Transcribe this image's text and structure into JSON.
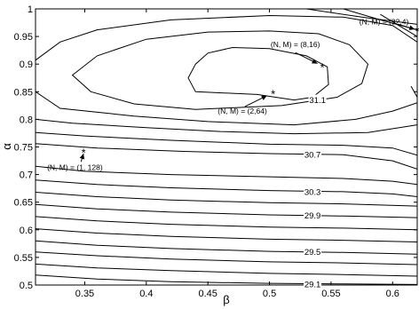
{
  "chart_data": {
    "type": "contour",
    "title": "",
    "xlabel": "β",
    "ylabel": "α",
    "xlim": [
      0.31,
      0.62
    ],
    "ylim": [
      0.5,
      1.0
    ],
    "grid": false,
    "x_ticks": [
      {
        "value": 0.35,
        "label": "0.35"
      },
      {
        "value": 0.4,
        "label": "0.4"
      },
      {
        "value": 0.45,
        "label": "0.45"
      },
      {
        "value": 0.5,
        "label": "0.5"
      },
      {
        "value": 0.55,
        "label": "0.55"
      },
      {
        "value": 0.6,
        "label": "0.6"
      }
    ],
    "y_ticks": [
      {
        "value": 0.5,
        "label": "0.5"
      },
      {
        "value": 0.55,
        "label": "0.55"
      },
      {
        "value": 0.6,
        "label": "0.6"
      },
      {
        "value": 0.65,
        "label": "0.65"
      },
      {
        "value": 0.7,
        "label": "0.7"
      },
      {
        "value": 0.75,
        "label": "0.75"
      },
      {
        "value": 0.8,
        "label": "0.8"
      },
      {
        "value": 0.85,
        "label": "0.85"
      },
      {
        "value": 0.9,
        "label": "0.9"
      },
      {
        "value": 0.95,
        "label": "0.95"
      },
      {
        "value": 1.0,
        "label": "1"
      }
    ],
    "contours": [
      {
        "label": "",
        "closed": true,
        "points": [
          [
            0.44,
            0.85
          ],
          [
            0.49,
            0.845
          ],
          [
            0.52,
            0.835
          ],
          [
            0.535,
            0.84
          ],
          [
            0.548,
            0.863
          ],
          [
            0.547,
            0.895
          ],
          [
            0.53,
            0.915
          ],
          [
            0.5,
            0.928
          ],
          [
            0.47,
            0.93
          ],
          [
            0.45,
            0.92
          ],
          [
            0.44,
            0.9
          ],
          [
            0.434,
            0.875
          ],
          [
            0.44,
            0.85
          ]
        ]
      },
      {
        "label": "",
        "closed": true,
        "points": [
          [
            0.34,
            0.88
          ],
          [
            0.36,
            0.915
          ],
          [
            0.4,
            0.945
          ],
          [
            0.45,
            0.958
          ],
          [
            0.5,
            0.96
          ],
          [
            0.54,
            0.955
          ],
          [
            0.565,
            0.935
          ],
          [
            0.58,
            0.9
          ],
          [
            0.575,
            0.865
          ],
          [
            0.555,
            0.84
          ],
          [
            0.51,
            0.825
          ],
          [
            0.44,
            0.818
          ],
          [
            0.39,
            0.828
          ],
          [
            0.355,
            0.85
          ],
          [
            0.34,
            0.88
          ]
        ]
      },
      {
        "label": "",
        "closed": false,
        "points": [
          [
            0.31,
            0.907
          ],
          [
            0.33,
            0.94
          ],
          [
            0.36,
            0.962
          ],
          [
            0.42,
            0.98
          ],
          [
            0.5,
            0.988
          ],
          [
            0.56,
            0.985
          ],
          [
            0.6,
            0.97
          ],
          [
            0.62,
            0.94
          ]
        ]
      },
      {
        "label": "",
        "closed": false,
        "points": [
          [
            0.31,
            0.85
          ],
          [
            0.33,
            0.82
          ],
          [
            0.39,
            0.806
          ],
          [
            0.45,
            0.796
          ],
          [
            0.52,
            0.79
          ],
          [
            0.57,
            0.8
          ],
          [
            0.6,
            0.815
          ],
          [
            0.62,
            0.83
          ]
        ]
      },
      {
        "label": "",
        "closed": false,
        "points": [
          [
            0.31,
            0.8
          ],
          [
            0.34,
            0.793
          ],
          [
            0.4,
            0.785
          ],
          [
            0.46,
            0.778
          ],
          [
            0.52,
            0.774
          ],
          [
            0.58,
            0.776
          ],
          [
            0.62,
            0.79
          ]
        ]
      },
      {
        "label": "",
        "closed": false,
        "points": [
          [
            0.31,
            0.776
          ],
          [
            0.35,
            0.77
          ],
          [
            0.42,
            0.762
          ],
          [
            0.5,
            0.755
          ],
          [
            0.56,
            0.753
          ],
          [
            0.6,
            0.748
          ],
          [
            0.62,
            0.735
          ]
        ]
      },
      {
        "label": "30.7",
        "label_x": 0.535,
        "closed": false,
        "points": [
          [
            0.31,
            0.756
          ],
          [
            0.36,
            0.748
          ],
          [
            0.43,
            0.742
          ],
          [
            0.5,
            0.738
          ],
          [
            0.56,
            0.736
          ],
          [
            0.6,
            0.725
          ],
          [
            0.62,
            0.71
          ]
        ]
      },
      {
        "label": "",
        "closed": false,
        "points": [
          [
            0.31,
            0.715
          ],
          [
            0.35,
            0.706
          ],
          [
            0.42,
            0.7
          ],
          [
            0.5,
            0.696
          ],
          [
            0.56,
            0.693
          ],
          [
            0.6,
            0.688
          ],
          [
            0.62,
            0.682
          ]
        ]
      },
      {
        "label": "30.3",
        "label_x": 0.535,
        "closed": false,
        "points": [
          [
            0.31,
            0.69
          ],
          [
            0.36,
            0.682
          ],
          [
            0.42,
            0.676
          ],
          [
            0.5,
            0.671
          ],
          [
            0.56,
            0.669
          ],
          [
            0.6,
            0.665
          ],
          [
            0.62,
            0.66
          ]
        ]
      },
      {
        "label": "",
        "closed": false,
        "points": [
          [
            0.31,
            0.668
          ],
          [
            0.36,
            0.66
          ],
          [
            0.42,
            0.654
          ],
          [
            0.5,
            0.649
          ],
          [
            0.56,
            0.647
          ],
          [
            0.62,
            0.643
          ]
        ]
      },
      {
        "label": "29.9",
        "label_x": 0.535,
        "closed": false,
        "points": [
          [
            0.31,
            0.646
          ],
          [
            0.36,
            0.638
          ],
          [
            0.42,
            0.632
          ],
          [
            0.5,
            0.627
          ],
          [
            0.56,
            0.625
          ],
          [
            0.62,
            0.622
          ]
        ]
      },
      {
        "label": "",
        "closed": false,
        "points": [
          [
            0.31,
            0.624
          ],
          [
            0.36,
            0.616
          ],
          [
            0.42,
            0.61
          ],
          [
            0.5,
            0.605
          ],
          [
            0.56,
            0.603
          ],
          [
            0.62,
            0.6
          ]
        ]
      },
      {
        "label": "",
        "closed": false,
        "points": [
          [
            0.31,
            0.602
          ],
          [
            0.36,
            0.594
          ],
          [
            0.42,
            0.588
          ],
          [
            0.5,
            0.583
          ],
          [
            0.56,
            0.581
          ],
          [
            0.62,
            0.578
          ]
        ]
      },
      {
        "label": "29.5",
        "label_x": 0.535,
        "closed": false,
        "points": [
          [
            0.31,
            0.58
          ],
          [
            0.36,
            0.572
          ],
          [
            0.42,
            0.566
          ],
          [
            0.5,
            0.561
          ],
          [
            0.56,
            0.559
          ],
          [
            0.62,
            0.556
          ]
        ]
      },
      {
        "label": "",
        "closed": false,
        "points": [
          [
            0.31,
            0.56
          ],
          [
            0.36,
            0.553
          ],
          [
            0.42,
            0.547
          ],
          [
            0.5,
            0.542
          ],
          [
            0.56,
            0.54
          ],
          [
            0.62,
            0.537
          ]
        ]
      },
      {
        "label": "",
        "closed": false,
        "points": [
          [
            0.31,
            0.538
          ],
          [
            0.36,
            0.531
          ],
          [
            0.42,
            0.526
          ],
          [
            0.5,
            0.521
          ],
          [
            0.56,
            0.519
          ],
          [
            0.62,
            0.516
          ]
        ]
      },
      {
        "label": "29.1",
        "label_x": 0.535,
        "closed": false,
        "points": [
          [
            0.31,
            0.518
          ],
          [
            0.36,
            0.511
          ],
          [
            0.42,
            0.506
          ],
          [
            0.5,
            0.503
          ],
          [
            0.56,
            0.502
          ],
          [
            0.62,
            0.501
          ]
        ]
      },
      {
        "label": "",
        "closed": false,
        "points": [
          [
            0.59,
            0.99
          ],
          [
            0.605,
            0.97
          ],
          [
            0.62,
            0.95
          ]
        ]
      },
      {
        "label": "",
        "closed": false,
        "points": [
          [
            0.56,
            1.0
          ],
          [
            0.59,
            0.98
          ],
          [
            0.62,
            0.962
          ]
        ]
      },
      {
        "label": "",
        "closed": false,
        "points": [
          [
            0.53,
            1.0
          ],
          [
            0.575,
            0.985
          ],
          [
            0.62,
            0.972
          ]
        ]
      },
      {
        "label": "",
        "closed": false,
        "points": [
          [
            0.615,
            0.86
          ],
          [
            0.62,
            0.84
          ]
        ]
      }
    ],
    "inline_labels": [
      {
        "text": "31.1",
        "x": 0.539,
        "y": 0.835
      },
      {
        "text": "30.7",
        "x": 0.535,
        "y": 0.736
      },
      {
        "text": "30.3",
        "x": 0.535,
        "y": 0.669
      },
      {
        "text": "29.9",
        "x": 0.535,
        "y": 0.626
      },
      {
        "text": "29.5",
        "x": 0.535,
        "y": 0.56
      },
      {
        "text": "29.1",
        "x": 0.535,
        "y": 0.502
      }
    ],
    "annotations": [
      {
        "text": "(N, M) = (8,16)",
        "label_x": 0.521,
        "label_y": 0.936,
        "marker_x": 0.543,
        "marker_y": 0.896,
        "arrow_from_x": 0.521,
        "arrow_from_y": 0.921,
        "arrow_to_x": 0.539,
        "arrow_to_y": 0.901
      },
      {
        "text": "(N, M) = (2,64)",
        "label_x": 0.478,
        "label_y": 0.815,
        "marker_x": 0.503,
        "marker_y": 0.848,
        "arrow_from_x": 0.48,
        "arrow_from_y": 0.823,
        "arrow_to_x": 0.498,
        "arrow_to_y": 0.843
      },
      {
        "text": "(N, M) = (1, 128)",
        "label_x": 0.342,
        "label_y": 0.713,
        "marker_x": 0.349,
        "marker_y": 0.742,
        "arrow_from_x": 0.347,
        "arrow_from_y": 0.723,
        "arrow_to_x": 0.349,
        "arrow_to_y": 0.738
      },
      {
        "text": "(N, M) = (32,4)",
        "label_x": 0.593,
        "label_y": 0.977,
        "marker_x": 0.62,
        "marker_y": 0.962,
        "arrow_from_x": 0.605,
        "arrow_from_y": 0.972,
        "arrow_to_x": 0.618,
        "arrow_to_y": 0.963
      }
    ]
  }
}
